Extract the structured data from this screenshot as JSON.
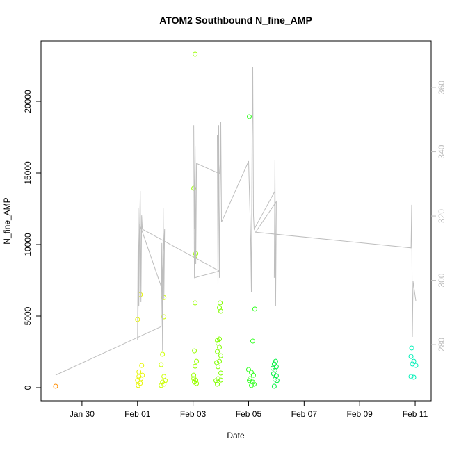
{
  "chart_data": {
    "type": "scatter",
    "title": "ATOM2 Southbound N_fine_AMP",
    "xlabel": "Date",
    "ylabel": "N_fine_AMP",
    "xlim": [
      -1.475,
      12.575
    ],
    "xticks": [
      {
        "value": 0,
        "label": "Jan 30"
      },
      {
        "value": 2,
        "label": "Feb 01"
      },
      {
        "value": 4,
        "label": "Feb 03"
      },
      {
        "value": 6,
        "label": "Feb 05"
      },
      {
        "value": 8,
        "label": "Feb 07"
      },
      {
        "value": 10,
        "label": "Feb 09"
      },
      {
        "value": 12,
        "label": "Feb 11"
      }
    ],
    "ylim": [
      -922,
      24223
    ],
    "yticks": [
      0,
      5000,
      10000,
      15000,
      20000
    ],
    "y2lim": [
      262.5,
      374.5
    ],
    "y2ticks": [
      280,
      300,
      320,
      340,
      360
    ],
    "y2color": "#bebebe",
    "grid": false,
    "series": [
      {
        "color": "#ff8c00",
        "x": [
          -0.95
        ],
        "values": [
          100
        ]
      },
      {
        "color": "#e6f500",
        "x": [
          2.0,
          2.1,
          2.05,
          2.15,
          2.0,
          2.1,
          2.025,
          2.125,
          2.175,
          2.05
        ],
        "values": [
          4760,
          6500,
          1100,
          1550,
          500,
          300,
          150,
          630,
          870,
          780
        ]
      },
      {
        "color": "#ccff00",
        "x": [
          2.95,
          2.95,
          2.9,
          2.85,
          2.95,
          2.9,
          2.85,
          3.0,
          2.95
        ],
        "values": [
          6300,
          4950,
          2330,
          1600,
          780,
          390,
          150,
          490,
          240
        ]
      },
      {
        "color": "#99ff00",
        "x": [
          4.075,
          4.025,
          4.1,
          4.075,
          4.075,
          4.05,
          4.075,
          4.125,
          4.025,
          4.1,
          4.05,
          4.125,
          4.025
        ],
        "values": [
          23300,
          13930,
          9370,
          9220,
          5920,
          2570,
          1500,
          1840,
          870,
          530,
          390,
          290,
          630
        ]
      },
      {
        "color": "#80ff00",
        "x": [
          4.975,
          4.95,
          5.0,
          4.875,
          4.95,
          4.9,
          4.95,
          4.875,
          5.0,
          4.85,
          4.95,
          4.9,
          5.0,
          4.9,
          4.825,
          5.0,
          4.875
        ],
        "values": [
          5920,
          5580,
          5340,
          3300,
          3400,
          3100,
          2820,
          2520,
          2230,
          1750,
          1840,
          1460,
          1020,
          630,
          490,
          530,
          240
        ]
      },
      {
        "color": "#33ff22",
        "x": [
          6.025,
          6.225,
          6.15,
          6.0,
          6.1,
          6.175,
          6.05,
          6.15,
          6.2,
          6.1,
          6.025
        ],
        "values": [
          18930,
          5490,
          3250,
          1260,
          1070,
          870,
          630,
          390,
          240,
          150,
          490
        ]
      },
      {
        "color": "#00f040",
        "x": [
          6.975,
          6.925,
          7.0,
          6.95,
          6.9,
          7.0,
          6.95,
          7.025,
          6.925,
          6.875
        ],
        "values": [
          1840,
          1650,
          1460,
          1210,
          970,
          830,
          580,
          490,
          100,
          1360
        ]
      },
      {
        "color": "#00f0b8",
        "x": [
          11.875,
          11.85,
          11.95,
          11.9,
          12.025,
          11.85,
          11.95
        ],
        "values": [
          2770,
          2180,
          1840,
          1650,
          1550,
          780,
          730
        ]
      },
      {
        "color": "#bebebe",
        "axis": "y2",
        "mode": "line",
        "x": [
          -0.95,
          2.85,
          2.875,
          2.9,
          2.925,
          2.95,
          2.975,
          2.875,
          2.075,
          2.0,
          2.025,
          2.05,
          2.075,
          2.1,
          2.125,
          2.15,
          2.175,
          4.95,
          4.05,
          4.025,
          4.05,
          4.075,
          4.1,
          4.125,
          4.95,
          4.875,
          4.9,
          4.925,
          4.95,
          5.0,
          5.025,
          6.0,
          6.075,
          6.1,
          6.125,
          6.15,
          6.175,
          6.2,
          6.95,
          6.925,
          6.95,
          6.975,
          7.0,
          6.25,
          11.85,
          11.875,
          11.9,
          11.925,
          12.025
        ],
        "values": [
          270.5,
          285.6,
          311.6,
          278.1,
          322.4,
          294.3,
          315.9,
          297.5,
          317.6,
          281.3,
          322.4,
          292.1,
          315.9,
          327.8,
          293.2,
          320.2,
          315.9,
          302.9,
          300.8,
          348.3,
          315.9,
          341.8,
          305.1,
          336.4,
          333.2,
          345.1,
          298.6,
          348.3,
          300.8,
          349.4,
          318.1,
          337.1,
          312.6,
          296.4,
          344.0,
          366.5,
          320.2,
          315.9,
          327.8,
          300.8,
          337.5,
          292.1,
          324.5,
          315.0,
          310.1,
          323.5,
          282.4,
          299.7,
          293.6
        ]
      }
    ]
  }
}
